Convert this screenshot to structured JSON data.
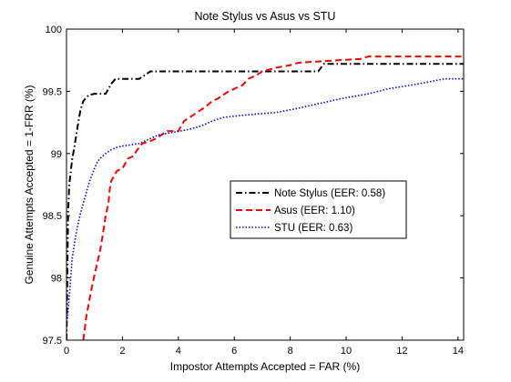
{
  "chart_data": {
    "type": "line",
    "title": "Note Stylus vs Asus vs STU",
    "xlabel": "Impostor Attempts Accepted = FAR (%)",
    "ylabel": "Genuine Attempts Accepted = 1-FRR (%)",
    "xlim": [
      0,
      14.2
    ],
    "ylim": [
      97.5,
      100
    ],
    "x_ticks": [
      0,
      2,
      4,
      6,
      8,
      10,
      12,
      14
    ],
    "y_ticks": [
      97.5,
      98,
      98.5,
      99,
      99.5,
      100
    ],
    "x_tick_labels": [
      "0",
      "2",
      "4",
      "6",
      "8",
      "10",
      "12",
      "14"
    ],
    "y_tick_labels": [
      "97.5",
      "98",
      "98.5",
      "99",
      "99.5",
      "100"
    ],
    "grid": false,
    "legend_position": "center-right",
    "series": [
      {
        "name": "Note Stylus (EER: 0.58)",
        "color": "#000000",
        "style": "dashdot",
        "points": [
          [
            0.0,
            97.5
          ],
          [
            0.02,
            97.8
          ],
          [
            0.04,
            98.2
          ],
          [
            0.06,
            98.55
          ],
          [
            0.1,
            98.75
          ],
          [
            0.15,
            98.85
          ],
          [
            0.2,
            98.95
          ],
          [
            0.28,
            99.05
          ],
          [
            0.35,
            99.15
          ],
          [
            0.42,
            99.25
          ],
          [
            0.5,
            99.35
          ],
          [
            0.6,
            99.42
          ],
          [
            0.7,
            99.45
          ],
          [
            0.8,
            99.47
          ],
          [
            1.0,
            99.48
          ],
          [
            1.4,
            99.48
          ],
          [
            1.5,
            99.52
          ],
          [
            1.6,
            99.56
          ],
          [
            1.75,
            99.6
          ],
          [
            2.6,
            99.6
          ],
          [
            2.8,
            99.63
          ],
          [
            3.0,
            99.66
          ],
          [
            9.0,
            99.66
          ],
          [
            9.2,
            99.72
          ],
          [
            14.2,
            99.72
          ]
        ]
      },
      {
        "name": "Asus (EER: 1.10)",
        "color": "#ff0000",
        "style": "dashed",
        "points": [
          [
            0.6,
            97.5
          ],
          [
            0.65,
            97.58
          ],
          [
            0.7,
            97.68
          ],
          [
            0.8,
            97.8
          ],
          [
            0.9,
            97.92
          ],
          [
            1.0,
            98.02
          ],
          [
            1.1,
            98.12
          ],
          [
            1.2,
            98.22
          ],
          [
            1.3,
            98.35
          ],
          [
            1.4,
            98.5
          ],
          [
            1.5,
            98.6
          ],
          [
            1.55,
            98.72
          ],
          [
            1.6,
            98.78
          ],
          [
            1.7,
            98.82
          ],
          [
            1.8,
            98.86
          ],
          [
            2.0,
            98.88
          ],
          [
            2.1,
            98.92
          ],
          [
            2.2,
            98.96
          ],
          [
            2.4,
            98.98
          ],
          [
            2.5,
            99.02
          ],
          [
            2.6,
            99.05
          ],
          [
            2.7,
            99.08
          ],
          [
            3.0,
            99.1
          ],
          [
            3.2,
            99.12
          ],
          [
            3.4,
            99.15
          ],
          [
            3.6,
            99.18
          ],
          [
            4.0,
            99.18
          ],
          [
            4.1,
            99.22
          ],
          [
            4.2,
            99.26
          ],
          [
            4.4,
            99.29
          ],
          [
            4.6,
            99.32
          ],
          [
            4.8,
            99.35
          ],
          [
            5.0,
            99.38
          ],
          [
            5.2,
            99.42
          ],
          [
            5.4,
            99.44
          ],
          [
            5.6,
            99.47
          ],
          [
            5.8,
            99.5
          ],
          [
            6.0,
            99.52
          ],
          [
            6.3,
            99.55
          ],
          [
            6.5,
            99.6
          ],
          [
            6.8,
            99.63
          ],
          [
            7.0,
            99.66
          ],
          [
            7.5,
            99.69
          ],
          [
            8.0,
            99.71
          ],
          [
            8.3,
            99.73
          ],
          [
            9.0,
            99.74
          ],
          [
            10.5,
            99.76
          ],
          [
            10.8,
            99.78
          ],
          [
            14.2,
            99.78
          ]
        ]
      },
      {
        "name": "STU (EER: 0.63)",
        "color": "#0000ff",
        "style": "dotted",
        "points": [
          [
            0.0,
            97.62
          ],
          [
            0.05,
            97.72
          ],
          [
            0.1,
            97.85
          ],
          [
            0.15,
            98.0
          ],
          [
            0.2,
            98.15
          ],
          [
            0.3,
            98.3
          ],
          [
            0.4,
            98.42
          ],
          [
            0.5,
            98.52
          ],
          [
            0.6,
            98.6
          ],
          [
            0.7,
            98.68
          ],
          [
            0.8,
            98.76
          ],
          [
            0.9,
            98.82
          ],
          [
            1.0,
            98.88
          ],
          [
            1.1,
            98.93
          ],
          [
            1.2,
            98.96
          ],
          [
            1.4,
            99.0
          ],
          [
            1.6,
            99.03
          ],
          [
            1.8,
            99.05
          ],
          [
            2.0,
            99.06
          ],
          [
            2.6,
            99.08
          ],
          [
            3.0,
            99.12
          ],
          [
            3.3,
            99.15
          ],
          [
            3.8,
            99.17
          ],
          [
            4.3,
            99.19
          ],
          [
            4.8,
            99.22
          ],
          [
            5.2,
            99.26
          ],
          [
            5.6,
            99.29
          ],
          [
            6.4,
            99.31
          ],
          [
            7.5,
            99.33
          ],
          [
            8.2,
            99.36
          ],
          [
            9.0,
            99.4
          ],
          [
            9.8,
            99.44
          ],
          [
            10.8,
            99.48
          ],
          [
            11.5,
            99.52
          ],
          [
            12.6,
            99.56
          ],
          [
            13.5,
            99.6
          ],
          [
            14.2,
            99.6
          ]
        ]
      }
    ]
  }
}
